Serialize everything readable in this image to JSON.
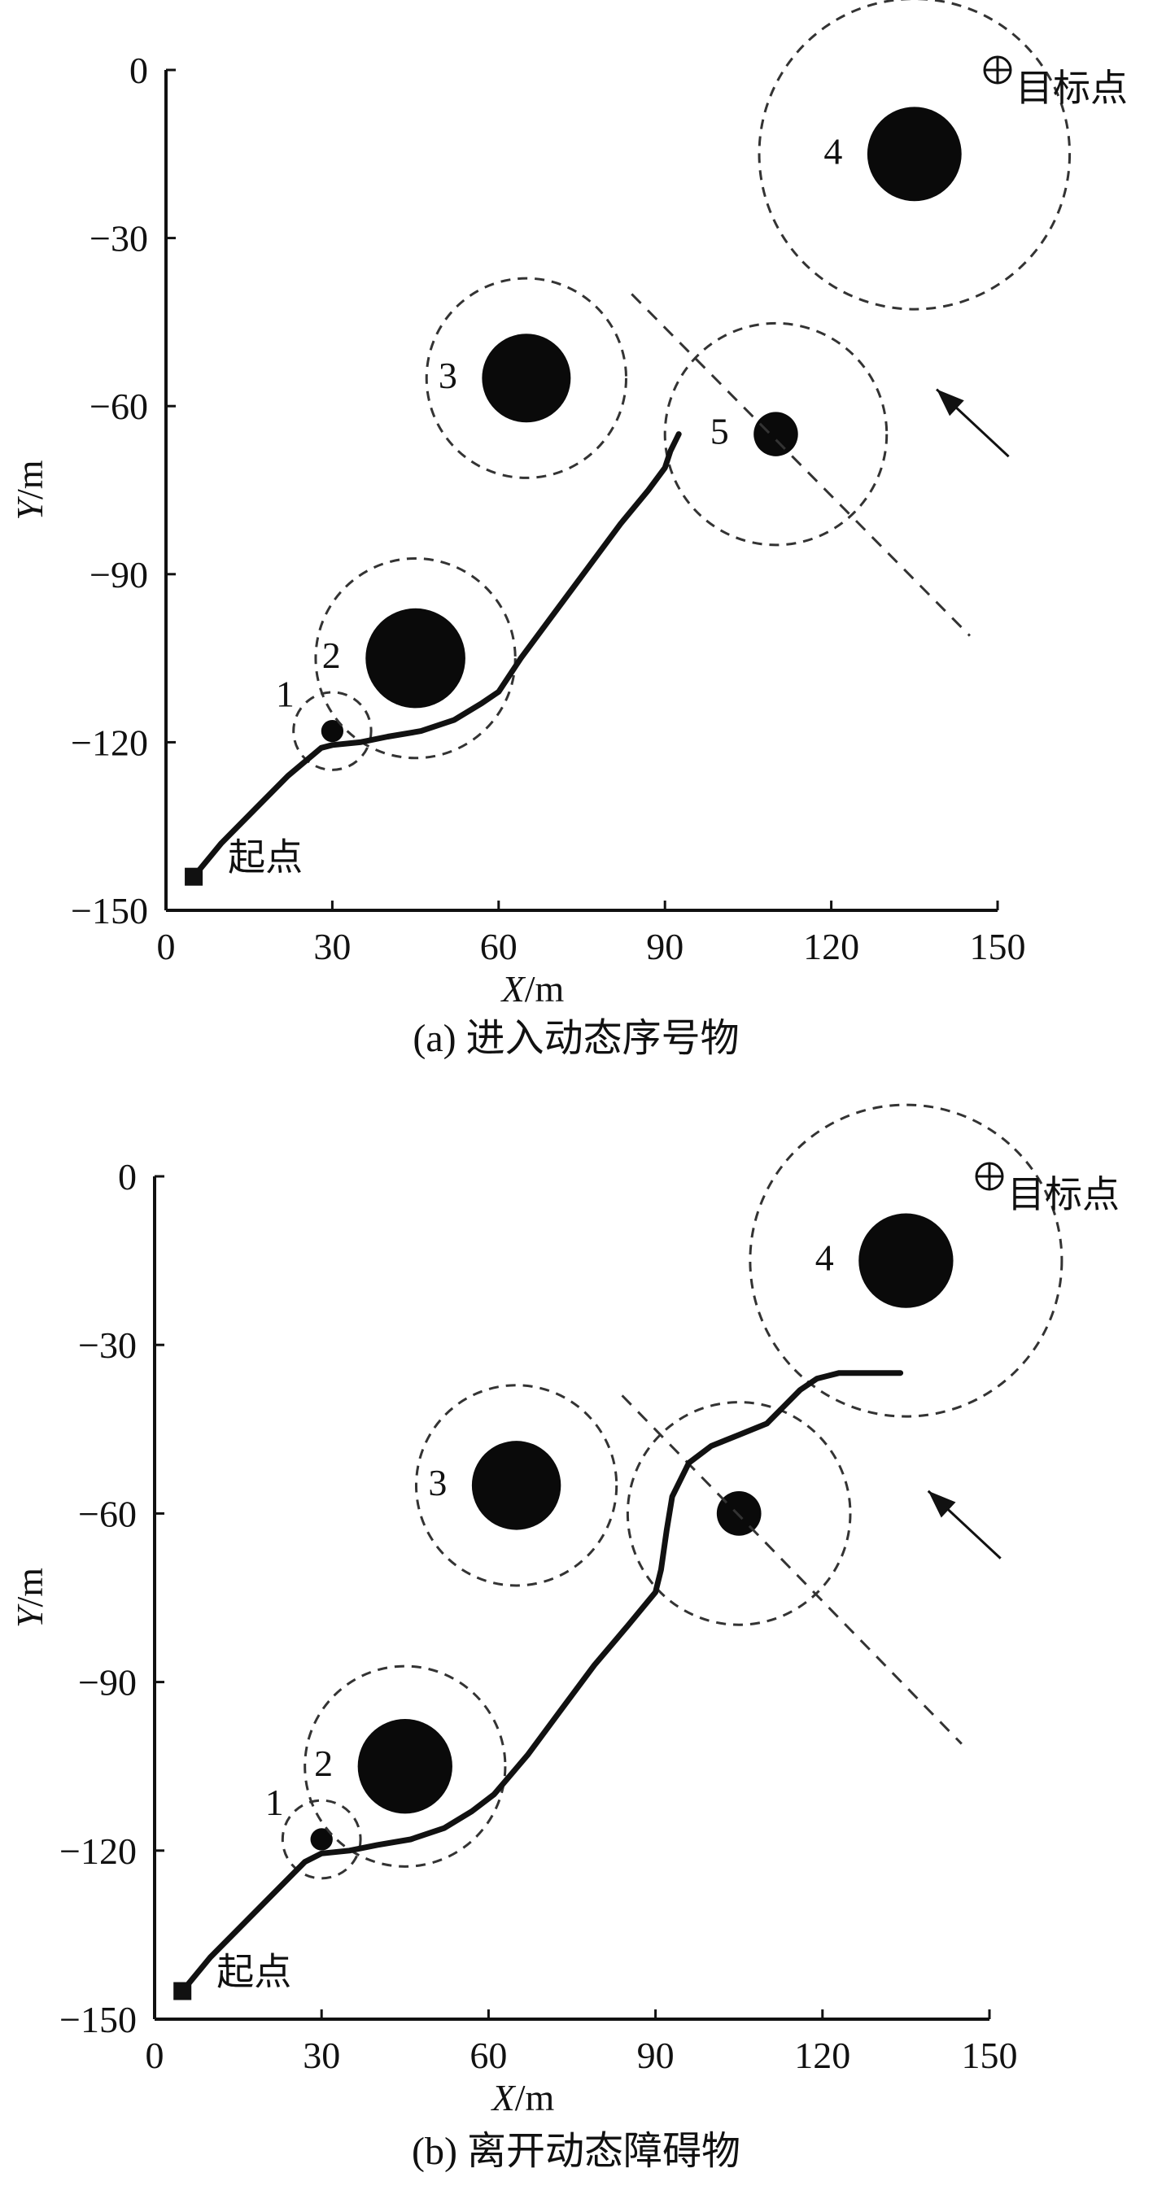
{
  "chart_data": [
    {
      "type": "scatter",
      "caption": "(a) 进入动态序号物",
      "xlabel_var": "X",
      "xlabel_unit": "/m",
      "ylabel_var": "Y",
      "ylabel_unit": "/m",
      "xlim": [
        0,
        150
      ],
      "ylim": [
        -150,
        0
      ],
      "xticks": [
        "0",
        "30",
        "60",
        "90",
        "120",
        "150"
      ],
      "yticks": [
        "0",
        "-30",
        "-60",
        "-90",
        "-120",
        "-150"
      ],
      "start": {
        "label": "起点",
        "x": 5,
        "y": -144
      },
      "goal": {
        "label": "目标点",
        "x": 150,
        "y": 0
      },
      "obstacles": [
        {
          "label": "1",
          "x": 30,
          "y": -118,
          "core_r": 2,
          "safe_r": 7
        },
        {
          "label": "2",
          "x": 45,
          "y": -105,
          "core_r": 9,
          "safe_r": 18
        },
        {
          "label": "3",
          "x": 65,
          "y": -55,
          "core_r": 8,
          "safe_r": 18
        },
        {
          "label": "4",
          "x": 135,
          "y": -15,
          "core_r": 8.5,
          "safe_r": 28
        },
        {
          "label": "5",
          "x": 110,
          "y": -65,
          "core_r": 4,
          "safe_r": 20
        }
      ],
      "dynamic_trajectory": [
        [
          84,
          -40
        ],
        [
          145,
          -101
        ]
      ],
      "motion_arrow": [
        [
          152,
          -69
        ],
        [
          139,
          -57
        ]
      ],
      "path": [
        [
          5,
          -144
        ],
        [
          10,
          -138
        ],
        [
          16,
          -132
        ],
        [
          22,
          -126
        ],
        [
          28,
          -121
        ],
        [
          30,
          -120.5
        ],
        [
          35,
          -120
        ],
        [
          40,
          -119
        ],
        [
          46,
          -118
        ],
        [
          52,
          -116
        ],
        [
          57,
          -113
        ],
        [
          60,
          -111
        ],
        [
          64,
          -105
        ],
        [
          70,
          -97
        ],
        [
          76,
          -89
        ],
        [
          82,
          -81
        ],
        [
          87,
          -75
        ],
        [
          90,
          -71
        ],
        [
          91,
          -68
        ],
        [
          92,
          -66
        ],
        [
          92.5,
          -65
        ]
      ]
    },
    {
      "type": "scatter",
      "caption": "(b) 离开动态障碍物",
      "xlabel_var": "X",
      "xlabel_unit": "/m",
      "ylabel_var": "Y",
      "ylabel_unit": "/m",
      "xlim": [
        0,
        150
      ],
      "ylim": [
        -150,
        0
      ],
      "xticks": [
        "0",
        "30",
        "60",
        "90",
        "120",
        "150"
      ],
      "yticks": [
        "0",
        "-30",
        "-60",
        "-90",
        "-120",
        "-150"
      ],
      "start": {
        "label": "起点",
        "x": 5,
        "y": -145
      },
      "goal": {
        "label": "目标点",
        "x": 150,
        "y": 0
      },
      "obstacles": [
        {
          "label": "1",
          "x": 30,
          "y": -118,
          "core_r": 2,
          "safe_r": 7
        },
        {
          "label": "2",
          "x": 45,
          "y": -105,
          "core_r": 8.5,
          "safe_r": 18
        },
        {
          "label": "3",
          "x": 65,
          "y": -55,
          "core_r": 8,
          "safe_r": 18
        },
        {
          "label": "4",
          "x": 135,
          "y": -15,
          "core_r": 8.5,
          "safe_r": 28
        },
        {
          "label": "",
          "x": 105,
          "y": -60,
          "core_r": 4,
          "safe_r": 20
        }
      ],
      "dynamic_trajectory": [
        [
          84,
          -39
        ],
        [
          145,
          -101
        ]
      ],
      "motion_arrow": [
        [
          152,
          -68
        ],
        [
          139,
          -56
        ]
      ],
      "path": [
        [
          5,
          -145
        ],
        [
          10,
          -139
        ],
        [
          16,
          -133
        ],
        [
          22,
          -127
        ],
        [
          27,
          -122
        ],
        [
          30,
          -120.5
        ],
        [
          35,
          -120
        ],
        [
          40,
          -119
        ],
        [
          46,
          -118
        ],
        [
          52,
          -116
        ],
        [
          57,
          -113
        ],
        [
          61,
          -110
        ],
        [
          67,
          -103
        ],
        [
          73,
          -95
        ],
        [
          79,
          -87
        ],
        [
          85,
          -80
        ],
        [
          90,
          -74
        ],
        [
          91,
          -70
        ],
        [
          92,
          -63
        ],
        [
          93,
          -57
        ],
        [
          96,
          -51
        ],
        [
          100,
          -48
        ],
        [
          105,
          -46
        ],
        [
          110,
          -44
        ],
        [
          113,
          -41
        ],
        [
          116,
          -38
        ],
        [
          119,
          -36
        ],
        [
          123,
          -35
        ],
        [
          128,
          -35
        ],
        [
          134,
          -35
        ]
      ]
    }
  ]
}
